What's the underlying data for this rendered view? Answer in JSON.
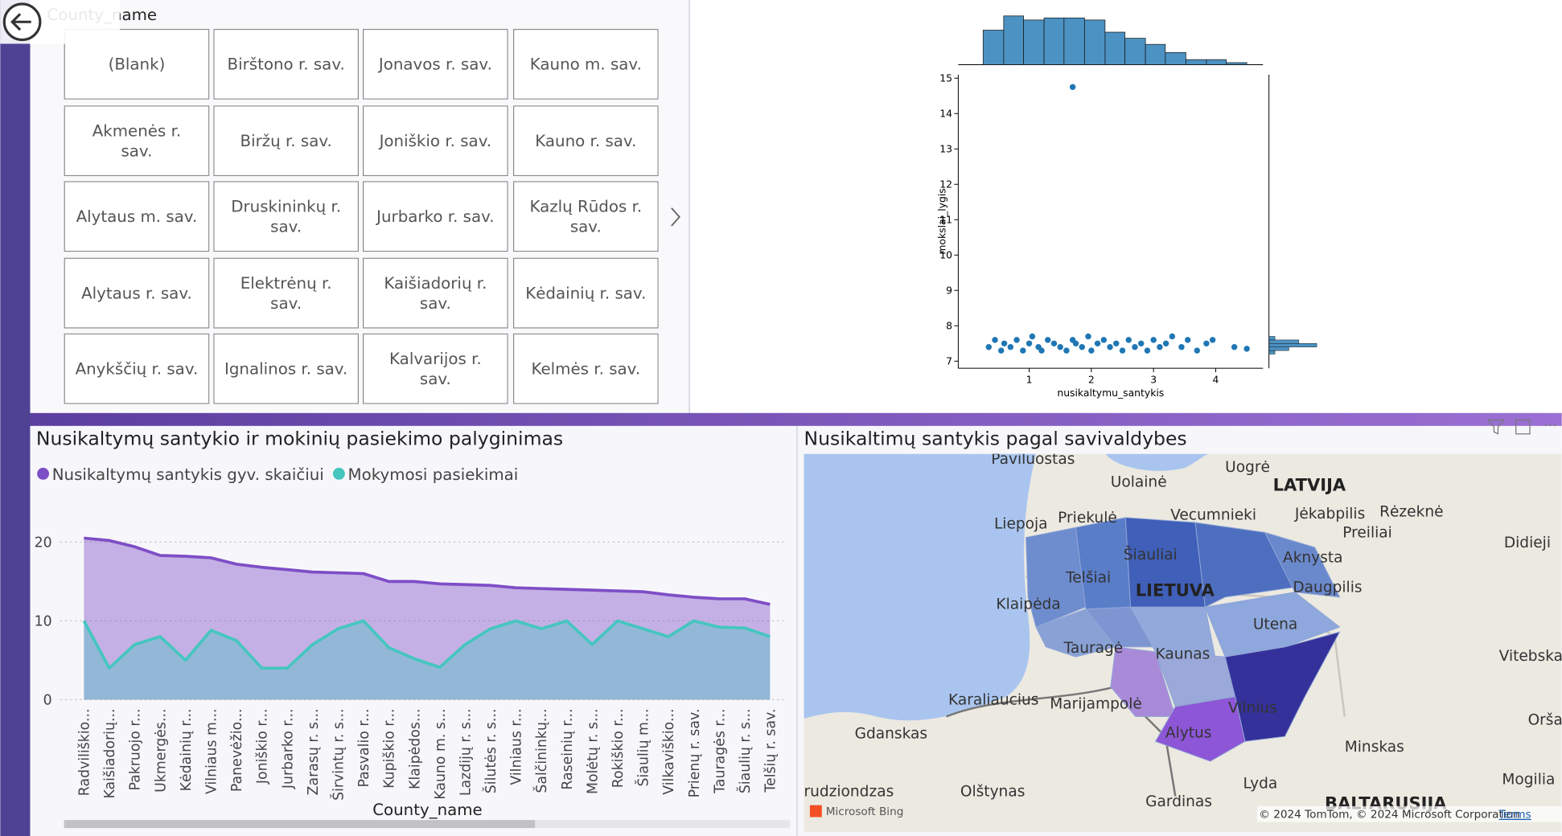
{
  "slicer": {
    "title": "County_name",
    "items": [
      "(Blank)",
      "Birštono r. sav.",
      "Jonavos r. sav.",
      "Kauno m. sav.",
      "Akmenės r. sav.",
      "Biržų r. sav.",
      "Joniškio r. sav.",
      "Kauno r. sav.",
      "Alytaus m. sav.",
      "Druskininkų r. sav.",
      "Jurbarko r. sav.",
      "Kazlų Rūdos r. sav.",
      "Alytaus r. sav.",
      "Elektrėnų r. sav.",
      "Kaišiadorių r. sav.",
      "Kėdainių r. sav.",
      "Anykščių r. sav.",
      "Ignalinos r. sav.",
      "Kalvarijos r. sav.",
      "Kelmės r. sav."
    ]
  },
  "chart_data": [
    {
      "type": "area",
      "title": "Nusikaltymų santykio ir mokinių pasiekimo palyginimas",
      "xlabel": "County_name",
      "legend": "top-left",
      "grid": true,
      "categories": [
        "Radviliškio...",
        "Kaišiadorių...",
        "Pakruojo r...",
        "Ukmergės...",
        "Kėdainių r...",
        "Vilniaus m...",
        "Panevėžio...",
        "Joniškio r...",
        "Jurbarko r...",
        "Zarasų r. s...",
        "Širvintų r. s...",
        "Pasvalio r...",
        "Kupiškio r...",
        "Klaipėdos...",
        "Kauno m. s...",
        "Lazdijų r. s...",
        "Šilutės r. s...",
        "Vilniaus r...",
        "Šalčininkų...",
        "Raseinių r...",
        "Molėtų r. s...",
        "Rokiškio r...",
        "Šiaulių m...",
        "Vilkaviškio...",
        "Prienų r. sav.",
        "Tauragės r...",
        "Šiaulių r. s...",
        "Telšių r. sav."
      ],
      "series": [
        {
          "name": "Nusikaltymų santykis gyv. skaičiui",
          "color": "#7e4ec6",
          "values": [
            20.5,
            20.2,
            19.4,
            18.3,
            18.2,
            18.0,
            17.2,
            16.8,
            16.5,
            16.2,
            16.1,
            16.0,
            15.0,
            15.0,
            14.7,
            14.6,
            14.5,
            14.2,
            14.1,
            14.0,
            13.9,
            13.8,
            13.7,
            13.3,
            13.0,
            12.8,
            12.8,
            12.1
          ]
        },
        {
          "name": "Mokymosi pasiekimai",
          "color": "#45c6bf",
          "values": [
            10,
            4,
            7,
            8,
            5,
            8.8,
            7.5,
            4,
            4,
            7,
            9,
            10,
            6.6,
            5.2,
            4.1,
            7,
            9,
            10,
            9,
            10,
            7,
            10,
            9,
            8,
            10,
            9.2,
            9.1,
            8
          ]
        }
      ],
      "ylim": [
        0,
        24
      ],
      "yticks": [
        0,
        10,
        20
      ]
    },
    {
      "type": "scatter",
      "xlabel": "nusikaltymu_santykis",
      "ylabel": "mokslai_lygis",
      "color": "#1f77b4",
      "x": [
        0.35,
        0.45,
        0.55,
        0.6,
        0.7,
        0.8,
        0.9,
        1.0,
        1.05,
        1.15,
        1.2,
        1.3,
        1.4,
        1.5,
        1.6,
        1.7,
        1.75,
        1.85,
        1.95,
        2.0,
        2.1,
        2.2,
        2.3,
        2.4,
        2.5,
        2.6,
        2.7,
        2.8,
        2.9,
        3.0,
        3.1,
        3.2,
        3.3,
        3.45,
        3.55,
        3.7,
        3.85,
        3.95,
        4.3,
        4.5,
        1.7
      ],
      "y": [
        7.4,
        7.6,
        7.3,
        7.5,
        7.4,
        7.6,
        7.3,
        7.5,
        7.7,
        7.4,
        7.3,
        7.6,
        7.5,
        7.4,
        7.3,
        7.6,
        7.5,
        7.4,
        7.7,
        7.3,
        7.5,
        7.6,
        7.4,
        7.5,
        7.3,
        7.6,
        7.4,
        7.5,
        7.3,
        7.6,
        7.4,
        7.5,
        7.7,
        7.4,
        7.6,
        7.3,
        7.5,
        7.6,
        7.4,
        7.35,
        14.75
      ],
      "xlim": [
        -0.14,
        4.76
      ],
      "ylim": [
        6.8,
        15.1
      ],
      "xticks": [
        1,
        2,
        3,
        4
      ],
      "yticks": [
        7,
        8,
        9,
        10,
        11,
        12,
        13,
        14,
        15
      ],
      "x_hist": {
        "bins": [
          0.26,
          0.59,
          0.91,
          1.24,
          1.56,
          1.89,
          2.22,
          2.54,
          2.87,
          3.19,
          3.52,
          3.85,
          4.17,
          4.5
        ],
        "counts": [
          34,
          48,
          44,
          46,
          46,
          44,
          32,
          26,
          20,
          12,
          5,
          5,
          2
        ]
      },
      "y_hist": {
        "bins": [
          7.2,
          7.3,
          7.4,
          7.5,
          7.6,
          7.7
        ],
        "counts": [
          6,
          20,
          48,
          30,
          6
        ]
      }
    }
  ],
  "map": {
    "title": "Nusikaltimų santykis pagal savivaldybes",
    "labels": [
      "Paviluostas",
      "Uogrė",
      "Uolainė",
      "LATVIJA",
      "Liepoja",
      "Priekulė",
      "Vecumnieki",
      "Jėkabpilis",
      "Rėzeknė",
      "Preiliai",
      "Didieji",
      "Šiauliai",
      "Telšiai",
      "LIETUVA",
      "Aknysta",
      "Daugpilis",
      "Klaipėda",
      "Utena",
      "Tauragė",
      "Kaunas",
      "Vitebska",
      "Karaliaucius",
      "Marijampolė",
      "Vilnius",
      "Orša",
      "Gdanskas",
      "Alytus",
      "Minskas",
      "Lyda",
      "Mogilia",
      "rudziondzas",
      "Olštynas",
      "Gardinas",
      "BALTARUSIJA"
    ],
    "attribution": "© 2024 TomTom, © 2024 Microsoft Corporation",
    "terms": "Terms",
    "provider": "Microsoft Bing"
  }
}
